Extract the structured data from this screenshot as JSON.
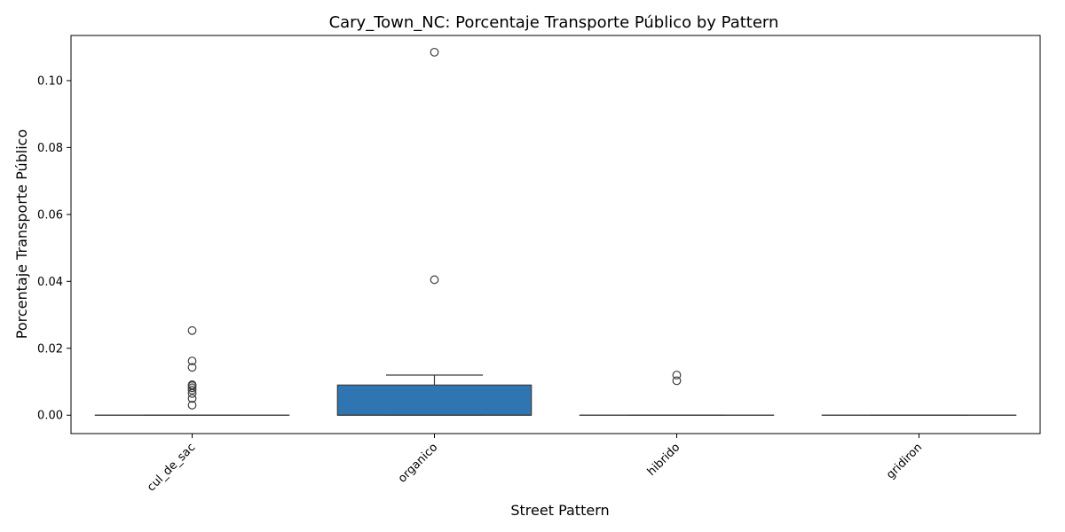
{
  "chart_data": {
    "type": "box",
    "title": "Cary_Town_NC: Porcentaje Transporte Público by Pattern",
    "xlabel": "Street Pattern",
    "ylabel": "Porcentaje Transporte Público",
    "ylim": [
      -0.0055,
      0.1135
    ],
    "yticks": [
      0.0,
      0.02,
      0.04,
      0.06,
      0.08,
      0.1
    ],
    "ytick_labels": [
      "0.00",
      "0.02",
      "0.04",
      "0.06",
      "0.08",
      "0.10"
    ],
    "categories": [
      "cul_de_sac",
      "organico",
      "hibrido",
      "gridiron"
    ],
    "box_color": "#2e75b1",
    "line_color": "#3d3d3d",
    "boxes": [
      {
        "category": "cul_de_sac",
        "q1": 0.0,
        "median": 0.0,
        "q3": 0.0,
        "whisker_low": 0.0,
        "whisker_high": 0.0,
        "outliers": [
          0.003,
          0.005,
          0.0065,
          0.0075,
          0.0082,
          0.0088,
          0.0091,
          0.0143,
          0.0162,
          0.0253
        ]
      },
      {
        "category": "organico",
        "q1": 0.0,
        "median": 0.0,
        "q3": 0.009,
        "whisker_low": 0.0,
        "whisker_high": 0.012,
        "outliers": [
          0.0405,
          0.1085
        ]
      },
      {
        "category": "hibrido",
        "q1": 0.0,
        "median": 0.0,
        "q3": 0.0,
        "whisker_low": 0.0,
        "whisker_high": 0.0,
        "outliers": [
          0.0103,
          0.012
        ]
      },
      {
        "category": "gridiron",
        "q1": 0.0,
        "median": 0.0,
        "q3": 0.0,
        "whisker_low": 0.0,
        "whisker_high": 0.0,
        "outliers": []
      }
    ]
  }
}
